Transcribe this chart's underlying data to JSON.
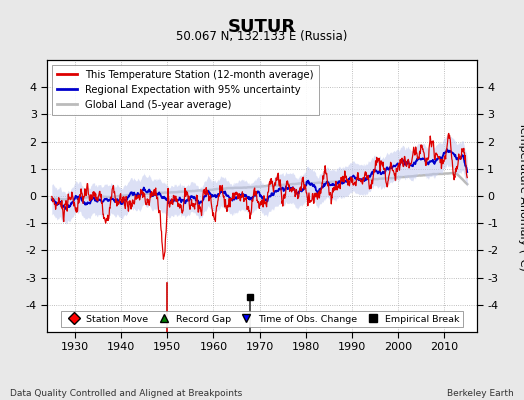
{
  "title": "SUTUR",
  "subtitle": "50.067 N, 132.133 E (Russia)",
  "ylabel": "Temperature Anomaly (°C)",
  "xlabel_footer": "Data Quality Controlled and Aligned at Breakpoints",
  "footer_right": "Berkeley Earth",
  "ylim": [
    -5,
    5
  ],
  "xlim": [
    1924,
    2017
  ],
  "yticks": [
    -4,
    -3,
    -2,
    -1,
    0,
    1,
    2,
    3,
    4
  ],
  "xticks": [
    1930,
    1940,
    1950,
    1960,
    1970,
    1980,
    1990,
    2000,
    2010
  ],
  "bg_color": "#e8e8e8",
  "plot_bg_color": "#ffffff",
  "station_line_color": "#dd0000",
  "regional_line_color": "#0000cc",
  "regional_fill_color": "#c0c8ee",
  "global_line_color": "#bbbbbb",
  "legend_entries": [
    "This Temperature Station (12-month average)",
    "Regional Expectation with 95% uncertainty",
    "Global Land (5-year average)"
  ],
  "station_move_year": 1950,
  "empirical_break_year": 1968,
  "vline_color_station": "#cc0000",
  "vline_color_break": "#333333"
}
